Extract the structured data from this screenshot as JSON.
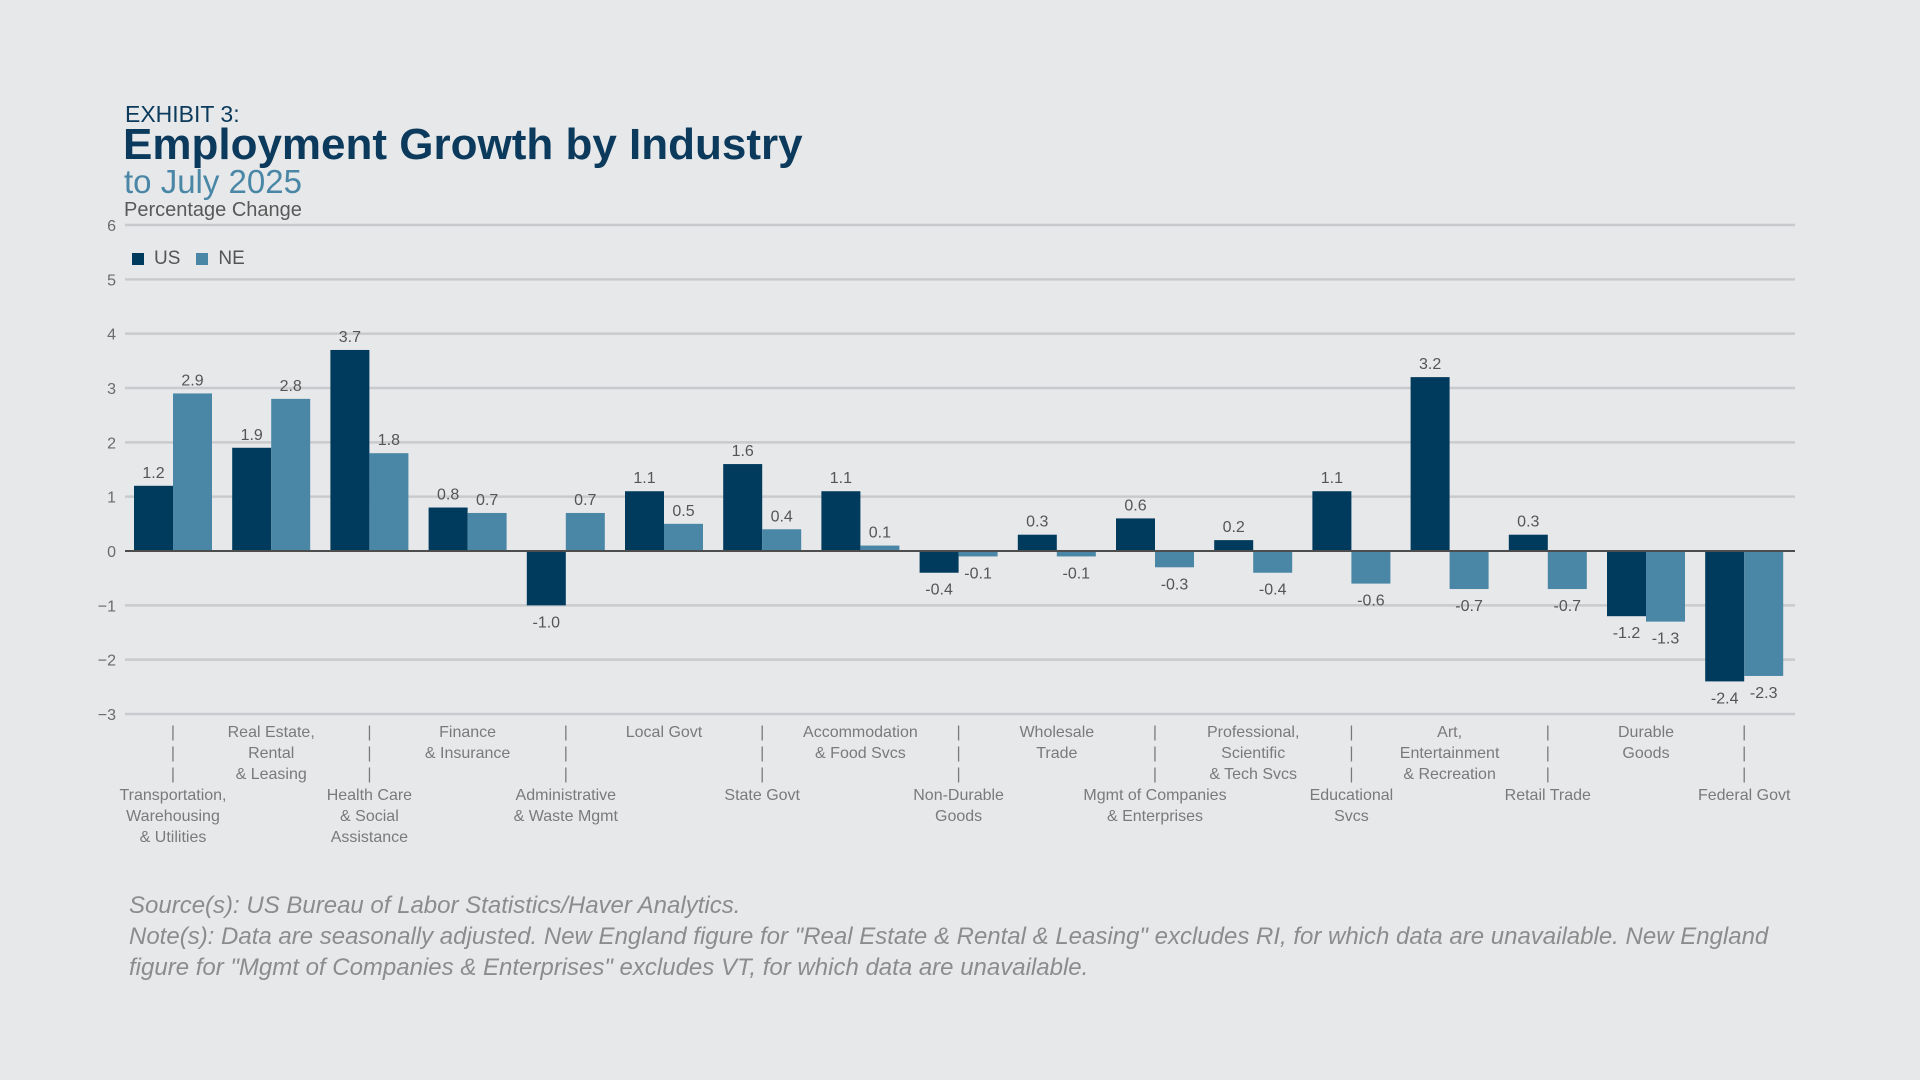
{
  "header": {
    "exhibit": "EXHIBIT 3:",
    "title": "Employment Growth by Industry",
    "subtitle": "to July 2025"
  },
  "footer": {
    "source": "Source(s): US Bureau of Labor Statistics/Haver Analytics.",
    "note": "Note(s): Data are seasonally adjusted. New England figure for \"Real Estate & Rental & Leasing\" excludes RI, for which data are unavailable. New England figure for \"Mgmt of Companies & Enterprises\" excludes VT, for which data are unavailable."
  },
  "colors": {
    "us": "#003a5c",
    "ne": "#4a87a6",
    "grid": "#c8cacd",
    "zero": "#4d4d4d"
  },
  "chart_data": {
    "type": "bar",
    "ylabel": "Percentage Change",
    "ylim": [
      -3,
      6
    ],
    "yticks": [
      "6",
      "5",
      "4",
      "3",
      "2",
      "1",
      "0",
      "−1",
      "−2",
      "−3"
    ],
    "grid": true,
    "legend": "top-left",
    "categories": [
      [
        "Transportation,",
        "Warehousing",
        "& Utilities"
      ],
      [
        "Real Estate,",
        "Rental",
        "& Leasing"
      ],
      [
        "Health Care",
        "& Social",
        "Assistance"
      ],
      [
        "Finance",
        "& Insurance"
      ],
      [
        "Administrative",
        "& Waste Mgmt"
      ],
      [
        "Local Govt"
      ],
      [
        "State Govt"
      ],
      [
        "Accommodation",
        "& Food Svcs"
      ],
      [
        "Non-Durable",
        "Goods"
      ],
      [
        "Wholesale",
        "Trade"
      ],
      [
        "Mgmt of Companies",
        "& Enterprises"
      ],
      [
        "Professional,",
        "Scientific",
        "& Tech Svcs"
      ],
      [
        "Educational",
        "Svcs"
      ],
      [
        "Art,",
        "Entertainment",
        "& Recreation"
      ],
      [
        "Retail Trade"
      ],
      [
        "Durable",
        "Goods"
      ],
      [
        "Federal Govt"
      ]
    ],
    "series": [
      {
        "name": "US",
        "values": [
          1.2,
          1.9,
          3.7,
          0.8,
          -1.0,
          1.1,
          1.6,
          1.1,
          -0.4,
          0.3,
          0.6,
          0.2,
          1.1,
          3.2,
          0.3,
          -1.2,
          -2.4
        ]
      },
      {
        "name": "NE",
        "values": [
          2.9,
          2.8,
          1.8,
          0.7,
          0.7,
          0.5,
          0.4,
          0.1,
          -0.1,
          -0.1,
          -0.3,
          -0.4,
          -0.6,
          -0.7,
          -0.7,
          -1.3,
          -2.3
        ]
      }
    ]
  }
}
